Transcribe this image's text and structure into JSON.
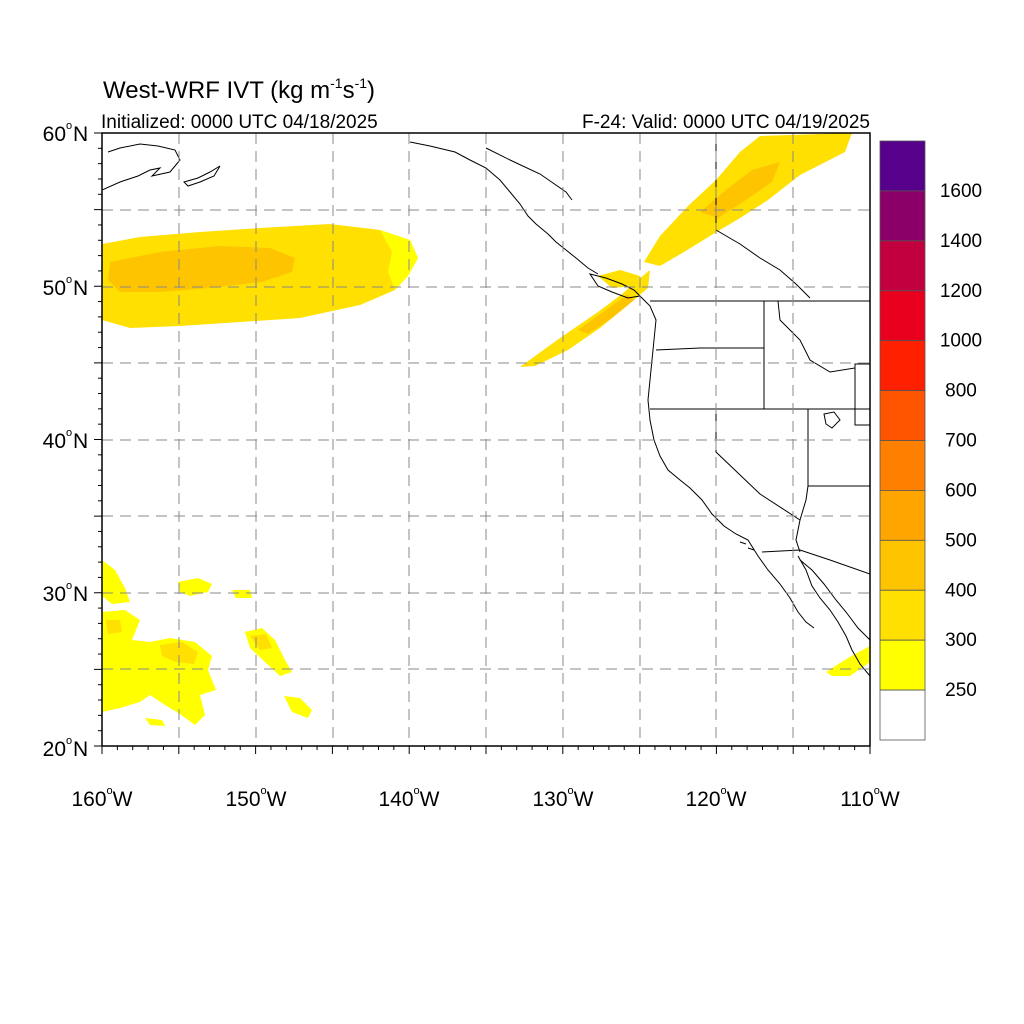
{
  "title": {
    "main": "West-WRF IVT (kg m",
    "exp1": "-1",
    "mid": "s",
    "exp2": "-1",
    "end": ")"
  },
  "initialized": "Initialized: 0000 UTC 04/18/2025",
  "valid": "F-24: Valid: 0000 UTC 04/19/2025",
  "lat_labels": [
    {
      "deg": "60",
      "suffix": "N"
    },
    {
      "deg": "50",
      "suffix": "N"
    },
    {
      "deg": "40",
      "suffix": "N"
    },
    {
      "deg": "30",
      "suffix": "N"
    },
    {
      "deg": "20",
      "suffix": "N"
    }
  ],
  "lon_labels": [
    {
      "deg": "160",
      "suffix": "W"
    },
    {
      "deg": "150",
      "suffix": "W"
    },
    {
      "deg": "140",
      "suffix": "W"
    },
    {
      "deg": "130",
      "suffix": "W"
    },
    {
      "deg": "120",
      "suffix": "W"
    },
    {
      "deg": "110",
      "suffix": "W"
    }
  ],
  "map_extent": {
    "lon_min": -160,
    "lon_max": -110,
    "lat_min": 20,
    "lat_max": 60
  },
  "colorbar": {
    "labels": [
      "1600",
      "1400",
      "1200",
      "1000",
      "800",
      "700",
      "600",
      "500",
      "400",
      "300",
      "250"
    ],
    "colors": [
      "#56008c",
      "#8b0068",
      "#c20040",
      "#e8001e",
      "#ff2000",
      "#ff5500",
      "#ff7f00",
      "#ffa500",
      "#ffc400",
      "#ffe000",
      "#ffff00",
      "#ffffff"
    ]
  },
  "ivt_fields": [
    {
      "region": "north-pacific-plume",
      "level": "300-500"
    },
    {
      "region": "pacific-northwest-river",
      "level": "300-400"
    },
    {
      "region": "canada-plume",
      "level": "300-400"
    },
    {
      "region": "subtropical-pacific-patches",
      "level": "250-300"
    },
    {
      "region": "baja-streak",
      "level": "250-300"
    }
  ],
  "colors": {
    "grid": "#888888",
    "frame": "#000000",
    "coast": "#000000"
  }
}
